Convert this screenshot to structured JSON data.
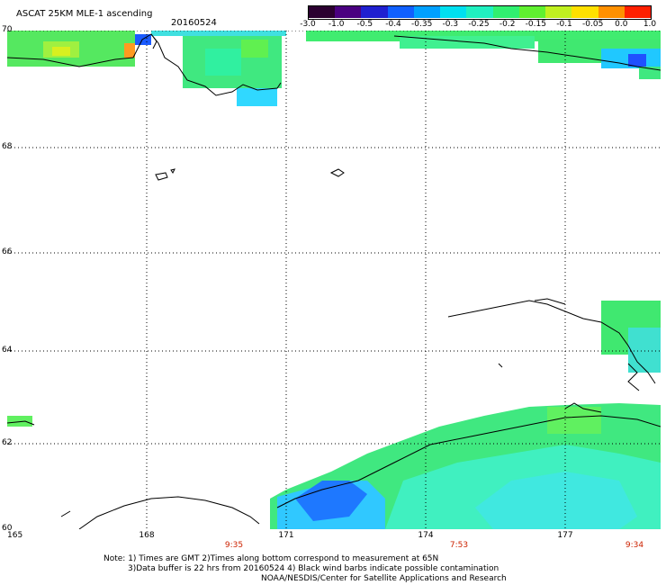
{
  "header": {
    "title": "ASCAT 25KM MLE-1 ascending",
    "date": "20160524"
  },
  "colorbar": {
    "labels": [
      "-3.0",
      "-1.0",
      "-0.5",
      "-0.4",
      "-0.35",
      "-0.3",
      "-0.25",
      "-0.2",
      "-0.15",
      "-0.1",
      "-0.05",
      "0.0",
      "1.0"
    ],
    "colors": [
      "#2b0030",
      "#4a0080",
      "#2020d0",
      "#1060ff",
      "#00a0ff",
      "#00e0f0",
      "#20f0c0",
      "#30f070",
      "#60f030",
      "#c0f020",
      "#ffe000",
      "#ff9000",
      "#ff2000"
    ]
  },
  "axes": {
    "lat_labels": [
      "70",
      "68",
      "66",
      "64",
      "62",
      "60"
    ],
    "lon_labels": [
      "165",
      "168",
      "171",
      "174",
      "177"
    ],
    "time_labels": [
      "9:35",
      "7:53",
      "9:34"
    ]
  },
  "notes": {
    "line1": "Note: 1) Times are GMT 2)Times along bottom correspond to measurement at 65N",
    "line2": "3)Data buffer is 22 hrs from 20160524 4) Black wind barbs indicate possible contamination",
    "line3": "NOAA/NESDIS/Center for Satellite Applications and Research"
  }
}
